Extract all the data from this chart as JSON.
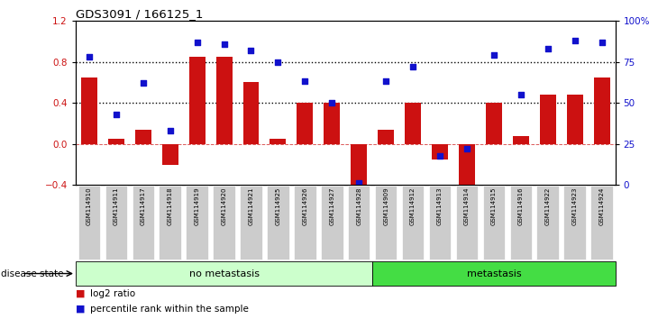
{
  "title": "GDS3091 / 166125_1",
  "samples": [
    "GSM114910",
    "GSM114911",
    "GSM114917",
    "GSM114918",
    "GSM114919",
    "GSM114920",
    "GSM114921",
    "GSM114925",
    "GSM114926",
    "GSM114927",
    "GSM114928",
    "GSM114909",
    "GSM114912",
    "GSM114913",
    "GSM114914",
    "GSM114915",
    "GSM114916",
    "GSM114922",
    "GSM114923",
    "GSM114924"
  ],
  "log2_ratio": [
    0.65,
    0.05,
    0.14,
    -0.2,
    0.85,
    0.85,
    0.6,
    0.05,
    0.4,
    0.4,
    -0.5,
    0.14,
    0.4,
    -0.15,
    -0.42,
    0.4,
    0.08,
    0.48,
    0.48,
    0.65
  ],
  "pct_rank": [
    78,
    43,
    62,
    33,
    87,
    86,
    82,
    75,
    63,
    50,
    1,
    63,
    72,
    18,
    22,
    79,
    55,
    83,
    88,
    87
  ],
  "no_metastasis_count": 11,
  "metastasis_count": 9,
  "bar_color": "#CC1111",
  "dot_color": "#1111CC",
  "no_meta_color": "#CCFFCC",
  "meta_color": "#44DD44",
  "label_bg_color": "#CCCCCC",
  "ylim_left": [
    -0.4,
    1.2
  ],
  "ylim_right": [
    0,
    100
  ],
  "yticks_left": [
    -0.4,
    0.0,
    0.4,
    0.8,
    1.2
  ],
  "yticks_right": [
    0,
    25,
    50,
    75,
    100
  ]
}
